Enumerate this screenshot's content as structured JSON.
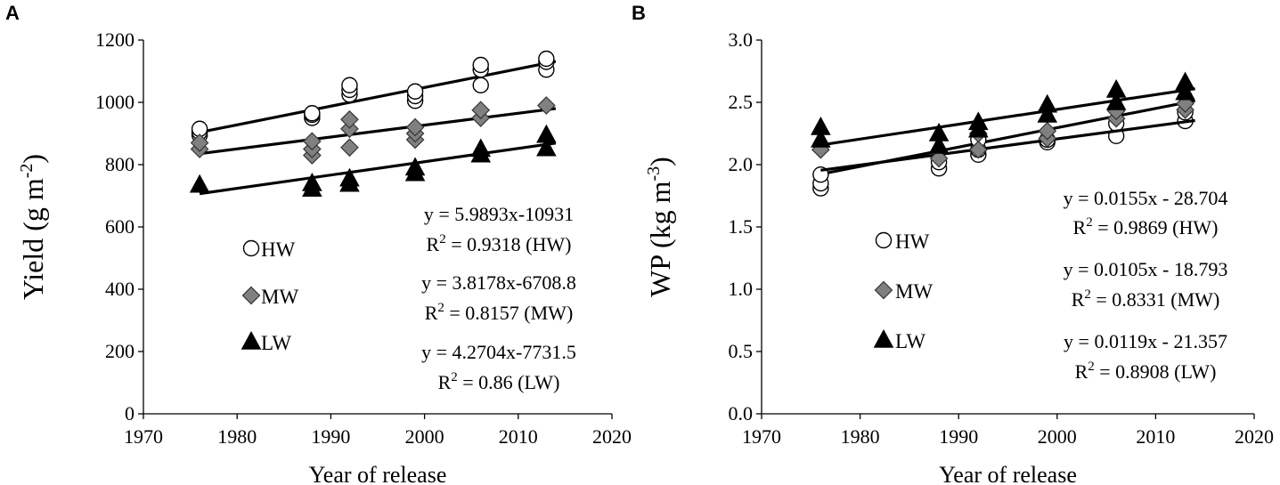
{
  "chart_data": [
    {
      "type": "scatter",
      "panel_label": "A",
      "xlabel": "Year of release",
      "ylabel": "Yield (g m",
      "ylabel_sup": "-2",
      "ylabel_end": ")",
      "xlim": [
        1970,
        2020
      ],
      "ylim": [
        0,
        1200
      ],
      "xticks": [
        1970,
        1980,
        1990,
        2000,
        2010,
        2020
      ],
      "yticks": [
        0,
        200,
        400,
        600,
        800,
        1000,
        1200
      ],
      "grid": false,
      "series": [
        {
          "name": "HW",
          "marker": "circle",
          "points": [
            [
              1976,
              895
            ],
            [
              1976,
              905
            ],
            [
              1976,
              915
            ],
            [
              1988,
              950
            ],
            [
              1988,
              960
            ],
            [
              1988,
              965
            ],
            [
              1992,
              1025
            ],
            [
              1992,
              1040
            ],
            [
              1992,
              1055
            ],
            [
              1999,
              1005
            ],
            [
              1999,
              1020
            ],
            [
              1999,
              1035
            ],
            [
              2006,
              1055
            ],
            [
              2006,
              1105
            ],
            [
              2006,
              1120
            ],
            [
              2013,
              1105
            ],
            [
              2013,
              1130
            ],
            [
              2013,
              1140
            ]
          ],
          "fit": {
            "slope": 5.9893,
            "intercept": -10931,
            "x_range": [
              1976,
              2014
            ]
          },
          "equation": "y = 5.9893x-10931",
          "r2_value": " = 0.9318 (HW)"
        },
        {
          "name": "MW",
          "marker": "diamond",
          "points": [
            [
              1976,
              850
            ],
            [
              1976,
              870
            ],
            [
              1988,
              830
            ],
            [
              1988,
              850
            ],
            [
              1988,
              875
            ],
            [
              1992,
              855
            ],
            [
              1992,
              915
            ],
            [
              1992,
              945
            ],
            [
              1999,
              880
            ],
            [
              1999,
              900
            ],
            [
              1999,
              920
            ],
            [
              2006,
              950
            ],
            [
              2006,
              975
            ],
            [
              2013,
              990
            ]
          ],
          "fit": {
            "slope": 3.8178,
            "intercept": -6708.8,
            "x_range": [
              1976,
              2014
            ]
          },
          "equation": "y = 3.8178x-6708.8",
          "r2_value": " = 0.8157 (MW)"
        },
        {
          "name": "LW",
          "marker": "triangle",
          "points": [
            [
              1976,
              735
            ],
            [
              1988,
              722
            ],
            [
              1988,
              740
            ],
            [
              1992,
              738
            ],
            [
              1992,
              755
            ],
            [
              1999,
              772
            ],
            [
              1999,
              790
            ],
            [
              2006,
              832
            ],
            [
              2006,
              850
            ],
            [
              2013,
              852
            ],
            [
              2013,
              895
            ]
          ],
          "fit": {
            "slope": 4.2704,
            "intercept": -7731.5,
            "x_range": [
              1976,
              2014
            ]
          },
          "equation": "y = 4.2704x-7731.5",
          "r2_value": " = 0.86 (LW)"
        }
      ],
      "r2_prefix": "R"
    },
    {
      "type": "scatter",
      "panel_label": "B",
      "xlabel": "Year of release",
      "ylabel": "WP (kg m",
      "ylabel_sup": "-3",
      "ylabel_end": ")",
      "xlim": [
        1970,
        2020
      ],
      "ylim": [
        0,
        3
      ],
      "xticks": [
        1970,
        1980,
        1990,
        2000,
        2010,
        2020
      ],
      "yticks": [
        "0.0",
        "0.5",
        "1.0",
        "1.5",
        "2.0",
        "2.5",
        "3.0"
      ],
      "grid": false,
      "series": [
        {
          "name": "HW",
          "marker": "circle",
          "points": [
            [
              1976,
              1.81
            ],
            [
              1976,
              1.85
            ],
            [
              1976,
              1.92
            ],
            [
              1988,
              1.97
            ],
            [
              1988,
              2.02
            ],
            [
              1992,
              2.08
            ],
            [
              1992,
              2.12
            ],
            [
              1992,
              2.2
            ],
            [
              1999,
              2.18
            ],
            [
              1999,
              2.2
            ],
            [
              2006,
              2.23
            ],
            [
              2006,
              2.33
            ],
            [
              2013,
              2.35
            ],
            [
              2013,
              2.42
            ]
          ],
          "fit": {
            "slope": 0.0155,
            "intercept": -28.704,
            "x_range": [
              1976,
              2014
            ]
          },
          "equation": "y = 0.0155x - 28.704",
          "r2_value": " = 0.9869 (HW)"
        },
        {
          "name": "MW",
          "marker": "diamond",
          "points": [
            [
              1976,
              2.12
            ],
            [
              1988,
              2.05
            ],
            [
              1992,
              2.12
            ],
            [
              1992,
              2.25
            ],
            [
              1999,
              2.21
            ],
            [
              1999,
              2.27
            ],
            [
              2006,
              2.37
            ],
            [
              2006,
              2.43
            ],
            [
              2013,
              2.44
            ],
            [
              2013,
              2.49
            ]
          ],
          "fit": {
            "slope": 0.0105,
            "intercept": -18.793,
            "x_range": [
              1976,
              2014
            ]
          },
          "equation": "y = 0.0105x - 18.793",
          "r2_value": " = 0.8331 (MW)"
        },
        {
          "name": "LW",
          "marker": "triangle",
          "points": [
            [
              1976,
              2.2
            ],
            [
              1976,
              2.3
            ],
            [
              1988,
              2.15
            ],
            [
              1988,
              2.25
            ],
            [
              1992,
              2.28
            ],
            [
              1992,
              2.34
            ],
            [
              1999,
              2.4
            ],
            [
              1999,
              2.48
            ],
            [
              2006,
              2.5
            ],
            [
              2006,
              2.6
            ],
            [
              2013,
              2.58
            ],
            [
              2013,
              2.66
            ]
          ],
          "fit": {
            "slope": 0.0119,
            "intercept": -21.357,
            "x_range": [
              1976,
              2014
            ]
          },
          "equation": "y = 0.0119x - 21.357",
          "r2_value": " = 0.8908 (LW)"
        }
      ],
      "r2_prefix": "R"
    }
  ],
  "colors": {
    "axis": "#000000",
    "hw_fill": "#ffffff",
    "mw_fill": "#808080",
    "lw_fill": "#000000",
    "fit_line": "#000000"
  }
}
